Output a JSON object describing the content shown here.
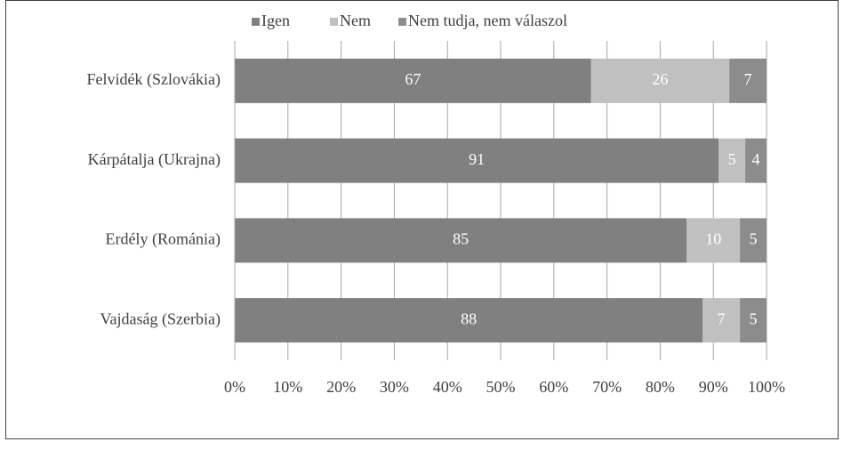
{
  "chart_data": {
    "type": "stacked_barh",
    "categories": [
      "Felvidék (Szlovákia)",
      "Kárpátalja (Ukrajna)",
      "Erdély (Románia)",
      "Vajdaság (Szerbia)"
    ],
    "series": [
      {
        "name": "Igen",
        "color": "#808080",
        "values": [
          67,
          91,
          85,
          88
        ]
      },
      {
        "name": "Nem",
        "color": "#c0c0c0",
        "values": [
          26,
          5,
          10,
          7
        ]
      },
      {
        "name": "Nem tudja, nem válaszol",
        "color": "#8c8c8c",
        "values": [
          7,
          4,
          5,
          5
        ]
      }
    ],
    "xlim": [
      0,
      100
    ],
    "xticks": [
      {
        "value": 0,
        "label": "0%"
      },
      {
        "value": 10,
        "label": "10%"
      },
      {
        "value": 20,
        "label": "20%"
      },
      {
        "value": 30,
        "label": "30%"
      },
      {
        "value": 40,
        "label": "40%"
      },
      {
        "value": 50,
        "label": "50%"
      },
      {
        "value": 60,
        "label": "60%"
      },
      {
        "value": 70,
        "label": "70%"
      },
      {
        "value": 80,
        "label": "80%"
      },
      {
        "value": 90,
        "label": "90%"
      },
      {
        "value": 100,
        "label": "100%"
      }
    ],
    "grid": true,
    "legend": "top"
  }
}
